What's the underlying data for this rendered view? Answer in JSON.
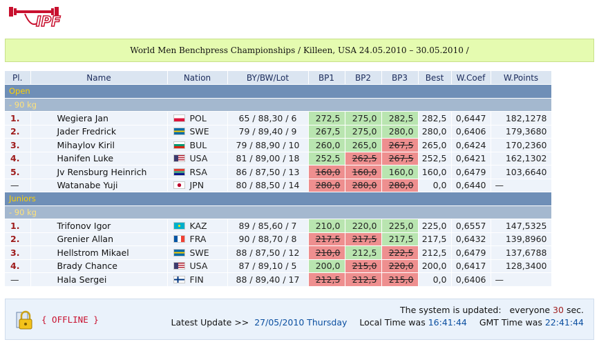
{
  "logo": {
    "text": "IPF"
  },
  "title": "World Men Benchpress Championships / Killeen, USA 24.05.2010 – 30.05.2010 /",
  "table": {
    "headers": [
      "Pl.",
      "Name",
      "Nation",
      "BY/BW/Lot",
      "BP1",
      "BP2",
      "BP3",
      "Best",
      "W.Coef",
      "W.Points"
    ],
    "sections": [
      {
        "category": "Open",
        "weight_class": " - 90 kg",
        "rows": [
          {
            "pl": "1.",
            "name": "Wegiera Jan",
            "nation": "POL",
            "flag": "pol",
            "bbl": "65 / 88,30 / 6",
            "bp": [
              {
                "v": "272,5",
                "s": "good"
              },
              {
                "v": "275,0",
                "s": "good"
              },
              {
                "v": "282,5",
                "s": "good"
              }
            ],
            "best": "282,5",
            "coef": "0,6447",
            "points": "182,1278"
          },
          {
            "pl": "2.",
            "name": "Jader Fredrick",
            "nation": "SWE",
            "flag": "swe",
            "bbl": "79 / 89,40 / 9",
            "bp": [
              {
                "v": "267,5",
                "s": "good"
              },
              {
                "v": "275,0",
                "s": "good"
              },
              {
                "v": "280,0",
                "s": "good"
              }
            ],
            "best": "280,0",
            "coef": "0,6406",
            "points": "179,3680"
          },
          {
            "pl": "3.",
            "name": "Mihaylov Kiril",
            "nation": "BUL",
            "flag": "bul",
            "bbl": "79 / 88,90 / 10",
            "bp": [
              {
                "v": "260,0",
                "s": "good"
              },
              {
                "v": "265,0",
                "s": "good"
              },
              {
                "v": "267,5",
                "s": "bad"
              }
            ],
            "best": "265,0",
            "coef": "0,6424",
            "points": "170,2360"
          },
          {
            "pl": "4.",
            "name": "Hanifen Luke",
            "nation": "USA",
            "flag": "usa",
            "bbl": "81 / 89,00 / 18",
            "bp": [
              {
                "v": "252,5",
                "s": "good"
              },
              {
                "v": "262,5",
                "s": "bad"
              },
              {
                "v": "267,5",
                "s": "bad"
              }
            ],
            "best": "252,5",
            "coef": "0,6421",
            "points": "162,1302"
          },
          {
            "pl": "5.",
            "name": "Jv Rensburg Heinrich",
            "nation": "RSA",
            "flag": "rsa",
            "bbl": "86 / 87,50 / 13",
            "bp": [
              {
                "v": "160,0",
                "s": "bad"
              },
              {
                "v": "160,0",
                "s": "bad"
              },
              {
                "v": "160,0",
                "s": "good"
              }
            ],
            "best": "160,0",
            "coef": "0,6479",
            "points": "103,6640"
          },
          {
            "pl": "—",
            "name": "Watanabe Yuji",
            "nation": "JPN",
            "flag": "jpn",
            "bbl": "80 / 88,50 / 14",
            "bp": [
              {
                "v": "280,0",
                "s": "bad"
              },
              {
                "v": "280,0",
                "s": "bad"
              },
              {
                "v": "280,0",
                "s": "bad"
              }
            ],
            "best": "0,0",
            "coef": "0,6440",
            "points": "—"
          }
        ]
      },
      {
        "category": "Juniors",
        "weight_class": " - 90 kg",
        "rows": [
          {
            "pl": "1.",
            "name": "Trifonov Igor",
            "nation": "KAZ",
            "flag": "kaz",
            "bbl": "89 / 85,60 / 7",
            "bp": [
              {
                "v": "210,0",
                "s": "good"
              },
              {
                "v": "220,0",
                "s": "good"
              },
              {
                "v": "225,0",
                "s": "good"
              }
            ],
            "best": "225,0",
            "coef": "0,6557",
            "points": "147,5325"
          },
          {
            "pl": "2.",
            "name": "Grenier Allan",
            "nation": "FRA",
            "flag": "fra",
            "bbl": "90 / 88,70 / 8",
            "bp": [
              {
                "v": "217,5",
                "s": "bad"
              },
              {
                "v": "217,5",
                "s": "bad"
              },
              {
                "v": "217,5",
                "s": "good"
              }
            ],
            "best": "217,5",
            "coef": "0,6432",
            "points": "139,8960"
          },
          {
            "pl": "3.",
            "name": "Hellstrom Mikael",
            "nation": "SWE",
            "flag": "swe",
            "bbl": "88 / 87,50 / 12",
            "bp": [
              {
                "v": "210,0",
                "s": "bad"
              },
              {
                "v": "212,5",
                "s": "good"
              },
              {
                "v": "222,5",
                "s": "bad"
              }
            ],
            "best": "212,5",
            "coef": "0,6479",
            "points": "137,6788"
          },
          {
            "pl": "4.",
            "name": "Brady Chance",
            "nation": "USA",
            "flag": "usa",
            "bbl": "87 / 89,10 / 5",
            "bp": [
              {
                "v": "200,0",
                "s": "good"
              },
              {
                "v": "215,0",
                "s": "bad"
              },
              {
                "v": "220,0",
                "s": "bad"
              }
            ],
            "best": "200,0",
            "coef": "0,6417",
            "points": "128,3400"
          },
          {
            "pl": "—",
            "name": "Hala Sergei",
            "nation": "FIN",
            "flag": "fin",
            "bbl": "88 / 89,40 / 17",
            "bp": [
              {
                "v": "212,5",
                "s": "bad"
              },
              {
                "v": "212,5",
                "s": "bad"
              },
              {
                "v": "215,0",
                "s": "bad"
              }
            ],
            "best": "0,0",
            "coef": "0,6406",
            "points": "—"
          }
        ]
      }
    ]
  },
  "footer": {
    "status": "{ OFFLINE }",
    "updated_label": "The system is updated:",
    "updated_every": "everyone",
    "updated_value": "30",
    "updated_unit": "sec.",
    "latest_label": "Latest Update >>",
    "latest_value": "27/05/2010 Thursday",
    "local_label": "Local Time was",
    "local_value": "16:41:44",
    "gmt_label": "GMT Time was",
    "gmt_value": "22:41:44"
  },
  "colors": {
    "title_bg": "#e5fbb0",
    "header_bg": "#dbe5f1",
    "category_bg": "#6f8fb7",
    "category_text": "#ffd100",
    "good_lift": "#b9e5b0",
    "bad_lift": "#ee8f8f",
    "place_text": "#9e1b1b",
    "offline_text": "#c8102e",
    "time_text": "#0b4fa0"
  },
  "icons": {
    "lock": "lock-icon",
    "logo": "ipf-logo"
  }
}
